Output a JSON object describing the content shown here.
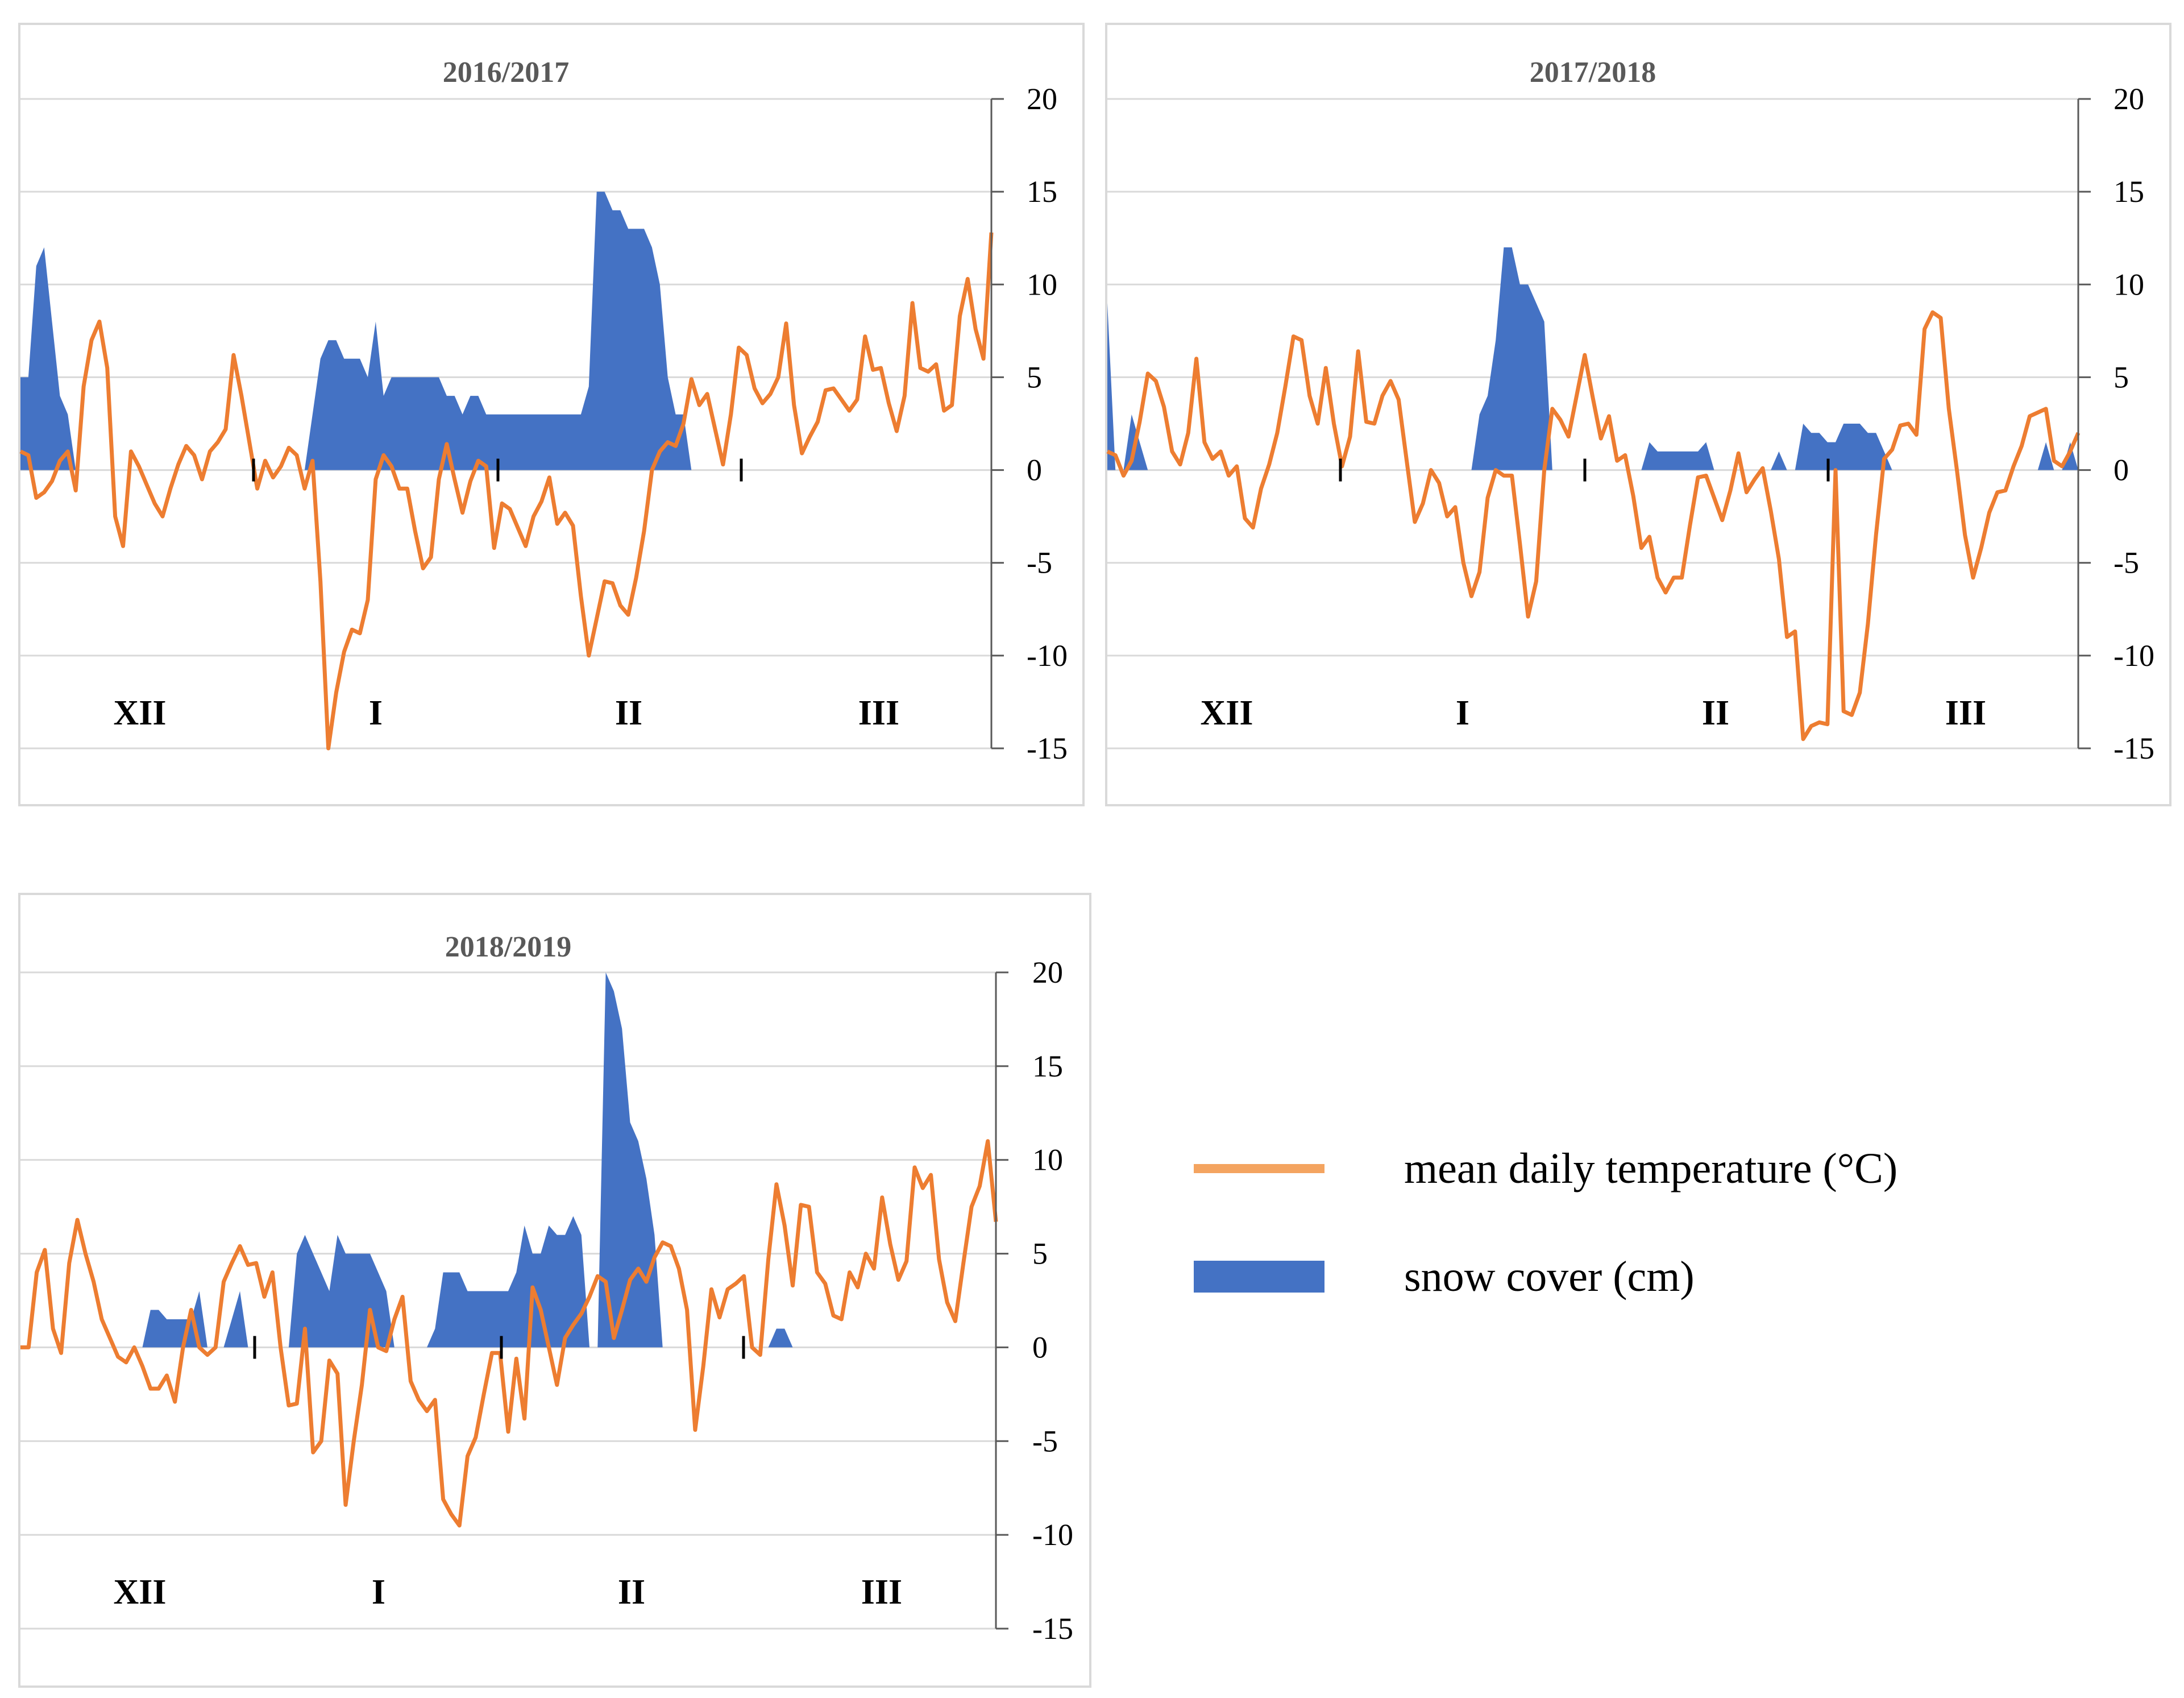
{
  "colors": {
    "temperature": "#ED7D31",
    "snow": "#4472C4",
    "grid": "#d9d9d9",
    "axis": "#000000",
    "legend_line": "#F4A460"
  },
  "legend": {
    "temperature_label": "mean daily temperature (°C)",
    "snow_label": "snow cover (cm)"
  },
  "chart_data": [
    {
      "type": "line",
      "title": "2016/2017",
      "ylim": [
        -15,
        20
      ],
      "yticks": [
        "20",
        "15",
        "10",
        "5",
        "0",
        "-5",
        "-10",
        "-15"
      ],
      "months": [
        "XII",
        "I",
        "II",
        "III"
      ],
      "series": [
        {
          "name": "mean daily temperature (°C)",
          "type": "line",
          "values": [
            1,
            0.8,
            -1.5,
            -1.2,
            -0.6,
            0.5,
            1,
            -1.1,
            4.5,
            7,
            8,
            5.5,
            -2.5,
            -4.1,
            1,
            0.2,
            -0.8,
            -1.8,
            -2.5,
            -1,
            0.3,
            1.3,
            0.8,
            -0.5,
            1,
            1.5,
            2.2,
            6.2,
            4,
            1.5,
            -1,
            0.5,
            -0.4,
            0.2,
            1.2,
            0.8,
            -1,
            0.5,
            -6,
            -15,
            -12,
            -9.8,
            -8.6,
            -8.8,
            -7,
            -0.5,
            0.8,
            0.2,
            -1,
            -1,
            -3.3,
            -5.3,
            -4.7,
            -0.5,
            1.4,
            -0.5,
            -2.3,
            -0.6,
            0.5,
            0.2,
            -4.2,
            -1.8,
            -2.1,
            -3.1,
            -4.1,
            -2.5,
            -1.7,
            -0.4,
            -2.9,
            -2.3,
            -3,
            -6.8,
            -10,
            -8,
            -6,
            -6.1,
            -7.3,
            -7.8,
            -5.8,
            -3.3,
            0,
            1,
            1.5,
            1.3,
            2.5,
            4.9,
            3.5,
            4.1,
            2.2,
            0.3,
            3,
            6.6,
            6.2,
            4.4,
            3.6,
            4.1,
            5,
            7.9,
            3.5,
            0.9,
            1.8,
            2.6,
            4.3,
            4.4,
            3.8,
            3.2,
            3.8,
            7.2,
            5.4,
            5.5,
            3.6,
            2.1,
            4,
            9,
            5.5,
            5.3,
            5.7,
            3.2,
            3.5,
            8.3,
            10.3,
            7.6,
            6,
            12.8
          ]
        },
        {
          "name": "snow cover (cm)",
          "type": "area",
          "values": [
            5,
            5,
            11,
            12,
            8,
            4,
            3,
            0,
            0,
            0,
            0,
            0,
            0,
            0,
            0,
            0,
            0,
            0,
            0,
            0,
            0,
            0,
            0,
            0,
            0,
            0,
            0,
            0,
            0,
            0,
            0,
            0,
            0,
            0,
            0,
            0,
            0,
            3,
            6,
            7,
            7,
            6,
            6,
            6,
            5,
            8,
            4,
            5,
            5,
            5,
            5,
            5,
            5,
            5,
            4,
            4,
            3,
            4,
            4,
            3,
            3,
            3,
            3,
            3,
            3,
            3,
            3,
            3,
            3,
            3,
            3,
            3,
            4.5,
            15,
            15,
            14,
            14,
            13,
            13,
            13,
            12,
            10,
            5,
            3,
            3,
            0,
            0,
            0,
            0,
            0,
            0,
            0,
            0,
            0,
            0,
            0,
            0,
            0,
            0,
            0,
            0,
            0,
            0,
            0,
            0,
            0,
            0,
            0,
            0,
            0,
            0,
            0,
            0,
            0,
            0,
            0,
            0,
            0,
            0,
            0,
            0,
            0,
            0
          ]
        }
      ]
    },
    {
      "type": "line",
      "title": "2017/2018",
      "ylim": [
        -15,
        20
      ],
      "yticks": [
        "20",
        "15",
        "10",
        "5",
        "0",
        "-5",
        "-10",
        "-15"
      ],
      "months": [
        "XII",
        "I",
        "II",
        "III"
      ],
      "series": [
        {
          "name": "mean daily temperature (°C)",
          "type": "line",
          "values": [
            1,
            0.8,
            -0.3,
            0.5,
            2.6,
            5.2,
            4.8,
            3.4,
            1,
            0.3,
            2,
            6,
            1.5,
            0.6,
            1,
            -0.3,
            0.2,
            -2.6,
            -3.1,
            -1,
            0.3,
            2,
            4.5,
            7.2,
            7,
            4,
            2.5,
            5.5,
            2.5,
            0.2,
            1.8,
            6.4,
            2.6,
            2.5,
            4,
            4.8,
            3.8,
            0.5,
            -2.8,
            -1.8,
            0,
            -0.7,
            -2.5,
            -2,
            -5,
            -6.8,
            -5.5,
            -1.5,
            0,
            -0.3,
            -0.3,
            -4,
            -7.9,
            -6,
            0,
            3.3,
            2.7,
            1.8,
            4,
            6.2,
            3.9,
            1.7,
            2.9,
            0.5,
            0.8,
            -1.4,
            -4.2,
            -3.6,
            -5.8,
            -6.6,
            -5.8,
            -5.8,
            -3,
            -0.4,
            -0.3,
            -1.5,
            -2.7,
            -1.1,
            0.9,
            -1.2,
            -0.5,
            0.1,
            -2.2,
            -4.8,
            -9,
            -8.7,
            -14.5,
            -13.8,
            -13.6,
            -13.7,
            0,
            -13,
            -13.2,
            -12,
            -8.3,
            -3.5,
            0.6,
            1.1,
            2.4,
            2.5,
            1.9,
            7.6,
            8.5,
            8.2,
            3.3,
            0,
            -3.5,
            -5.8,
            -4.2,
            -2.3,
            -1.2,
            -1.1,
            0.2,
            1.3,
            2.9,
            3.1,
            3.3,
            0.5,
            0.2,
            1,
            2
          ]
        },
        {
          "name": "snow cover (cm)",
          "type": "area",
          "values": [
            9,
            0,
            0,
            3,
            1.5,
            0,
            0,
            0,
            0,
            0,
            0,
            0,
            0,
            0,
            0,
            0,
            0,
            0,
            0,
            0,
            0,
            0,
            0,
            0,
            0,
            0,
            0,
            0,
            0,
            0,
            0,
            0,
            0,
            0,
            0,
            0,
            0,
            0,
            0,
            0,
            0,
            0,
            0,
            0,
            0,
            0,
            3,
            4,
            7,
            12,
            12,
            10,
            10,
            9,
            8,
            0,
            0,
            0,
            0,
            0,
            0,
            0,
            0,
            0,
            0,
            0,
            0,
            1.5,
            1,
            1,
            1,
            1,
            1,
            1,
            1.5,
            0,
            0,
            0,
            0,
            0,
            0,
            0,
            0,
            1,
            0,
            0,
            2.5,
            2,
            2,
            1.5,
            1.5,
            2.5,
            2.5,
            2.5,
            2,
            2,
            1,
            0,
            0,
            0,
            0,
            0,
            0,
            0,
            0,
            0,
            0,
            0,
            0,
            0,
            0,
            0,
            0,
            0,
            0,
            0,
            1.5,
            0,
            0,
            1.5,
            0,
            0
          ]
        }
      ]
    },
    {
      "type": "line",
      "title": "2018/2019",
      "ylim": [
        -15,
        20
      ],
      "yticks": [
        "20",
        "15",
        "10",
        "5",
        "0",
        "-5",
        "-10",
        "-15"
      ],
      "months": [
        "XII",
        "I",
        "II",
        "III"
      ],
      "series": [
        {
          "name": "mean daily temperature (°C)",
          "type": "line",
          "values": [
            0,
            0,
            4,
            5.2,
            1,
            -0.3,
            4.5,
            6.8,
            5,
            3.5,
            1.5,
            0.5,
            -0.5,
            -0.8,
            0,
            -1,
            -2.2,
            -2.2,
            -1.5,
            -2.9,
            0,
            2,
            0,
            -0.4,
            0,
            3.5,
            4.5,
            5.4,
            4.4,
            4.5,
            2.7,
            4,
            0,
            -3.1,
            -3,
            1,
            -5.6,
            -5,
            -0.7,
            -1.4,
            -8.4,
            -5,
            -2,
            2,
            0,
            -0.2,
            1.5,
            2.7,
            -1.8,
            -2.8,
            -3.4,
            -2.8,
            -8.1,
            -8.9,
            -9.5,
            -5.8,
            -4.8,
            -2.5,
            -0.3,
            -0.3,
            -4.5,
            -0.6,
            -3.8,
            3.2,
            2,
            0,
            -2,
            0.5,
            1.2,
            1.8,
            2.7,
            3.8,
            3.5,
            0.5,
            2,
            3.6,
            4.2,
            3.5,
            4.8,
            5.6,
            5.4,
            4.2,
            2,
            -4.4,
            -1,
            3.1,
            1.6,
            3.1,
            3.4,
            3.8,
            0,
            -0.4,
            4.7,
            8.7,
            6.5,
            3.3,
            7.6,
            7.5,
            4,
            3.4,
            1.7,
            1.5,
            4,
            3.2,
            5,
            4.2,
            8,
            5.5,
            3.6,
            4.6,
            9.6,
            8.5,
            9.2,
            4.7,
            2.4,
            1.4,
            4.5,
            7.5,
            8.6,
            11,
            6.7
          ]
        },
        {
          "name": "snow cover (cm)",
          "type": "area",
          "values": [
            0,
            0,
            0,
            0,
            0,
            0,
            0,
            0,
            0,
            0,
            0,
            0,
            0,
            0,
            0,
            0,
            2,
            2,
            1.5,
            1.5,
            1.5,
            1.5,
            3,
            0,
            0,
            0,
            1.5,
            3,
            0,
            0,
            0,
            0,
            0,
            0,
            5,
            6,
            5,
            4,
            3,
            6,
            5,
            5,
            5,
            5,
            4,
            3,
            0,
            0,
            0,
            0,
            0,
            1,
            4,
            4,
            4,
            3,
            3,
            3,
            3,
            3,
            3,
            4,
            6.5,
            5,
            5,
            6.5,
            6,
            6,
            7,
            6,
            0,
            0,
            20,
            19,
            17,
            12,
            11,
            9,
            6,
            0,
            0,
            0,
            0,
            0,
            0,
            0,
            0,
            0,
            0,
            0,
            0,
            0,
            0,
            1,
            1,
            0,
            0,
            0,
            0,
            0,
            0,
            0,
            0,
            0,
            0,
            0,
            0,
            0,
            0,
            0,
            0,
            0,
            0,
            0,
            0,
            0,
            0,
            0,
            0,
            0,
            0,
            0,
            0,
            0
          ]
        }
      ]
    }
  ]
}
